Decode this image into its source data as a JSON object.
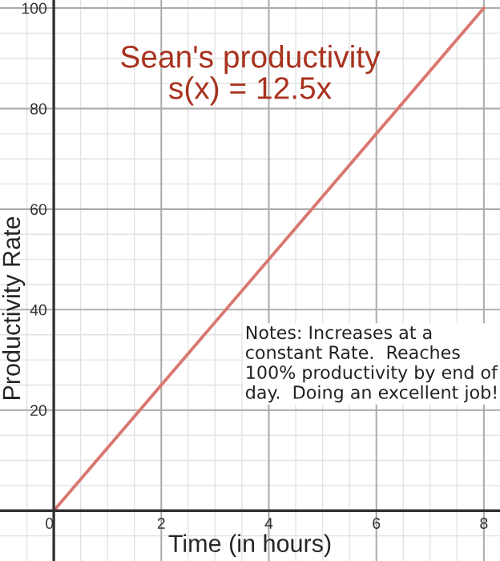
{
  "chart_data": {
    "type": "line",
    "title": "Sean's productivity\ns(x) = 12.5x",
    "xlabel": "Time (in hours)",
    "ylabel": "Productivity Rate",
    "x": [
      0,
      8
    ],
    "series": [
      {
        "color": "#d9776f",
        "values": [
          0,
          100
        ]
      }
    ],
    "xlim": [
      -1.0,
      8.3
    ],
    "ylim": [
      -10,
      101.6
    ],
    "xticks": [
      0,
      2,
      4,
      6,
      8
    ],
    "yticks": [
      20,
      40,
      60,
      80,
      100
    ],
    "grid": true,
    "annotations": [
      "Notes: Increases at a constant Rate.  Reaches 100% productivity by end of day.  Doing an excellent job!"
    ]
  }
}
